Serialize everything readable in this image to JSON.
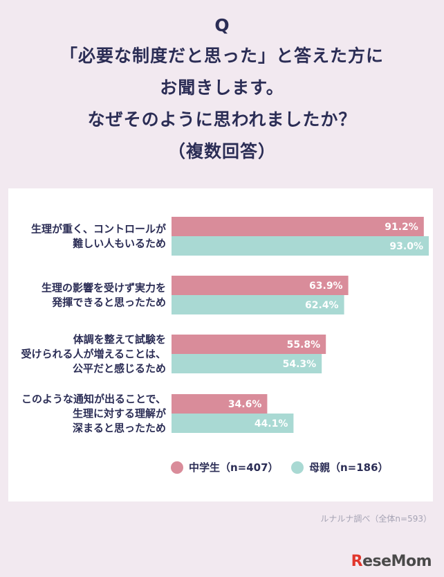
{
  "title": {
    "q": "Q",
    "lines": [
      "「必要な制度だと思った」と答えた方に",
      "お聞きします。",
      "なぜそのように思われましたか？",
      "（複数回答）"
    ]
  },
  "source": "ルナルナ調べ（全体n=593）",
  "logo": "ReseMom",
  "colors": {
    "series1": "#d98c9a",
    "series2": "#a9d9d3",
    "text": "#2b2d55",
    "background": "#f2e9f0"
  },
  "chart_data": {
    "type": "bar",
    "orientation": "horizontal",
    "categories": [
      [
        "生理が重く、コントロールが",
        "難しい人もいるため"
      ],
      [
        "生理の影響を受けず実力を",
        "発揮できると思ったため"
      ],
      [
        "体調を整えて試験を",
        "受けられる人が増えることは、",
        "公平だと感じるため"
      ],
      [
        "このような通知が出ることで、",
        "生理に対する理解が",
        "深まると思ったため"
      ]
    ],
    "series": [
      {
        "name": "中学生（n=407）",
        "values": [
          91.2,
          63.9,
          55.8,
          34.6
        ],
        "labels": [
          "91.2%",
          "63.9%",
          "55.8%",
          "34.6%"
        ],
        "color": "#d98c9a"
      },
      {
        "name": "母親（n=186）",
        "values": [
          93.0,
          62.4,
          54.3,
          44.1
        ],
        "labels": [
          "93.0%",
          "62.4%",
          "54.3%",
          "44.1%"
        ],
        "color": "#a9d9d3"
      }
    ],
    "xlim": [
      0,
      100
    ],
    "unit": "%",
    "grid": false,
    "legend": "bottom"
  }
}
